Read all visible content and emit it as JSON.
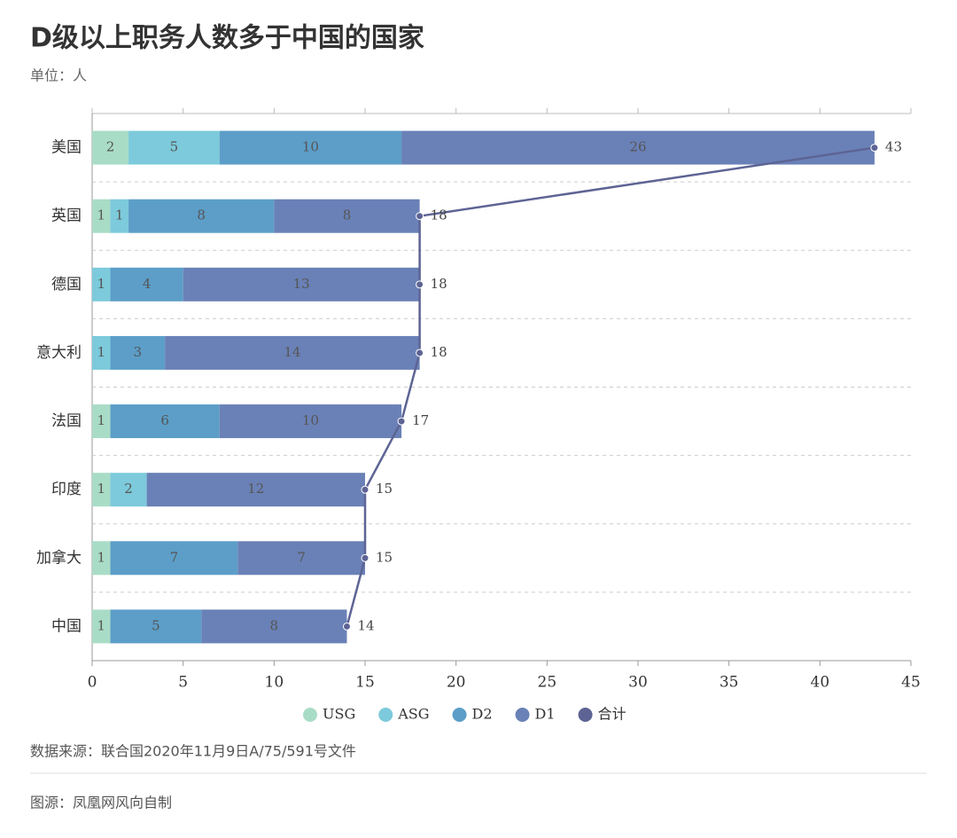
{
  "chart_data": {
    "type": "stacked-bar-line",
    "title": "D级以上职务人数多于中国的国家",
    "subtitle": "单位：人",
    "source": "数据来源：联合国2020年11月9日A/75/591号文件",
    "credit": "图源：凤凰网风向自制",
    "orientation": "horizontal",
    "categories": [
      "美国",
      "英国",
      "德国",
      "意大利",
      "法国",
      "印度",
      "加拿大",
      "中国"
    ],
    "series": [
      {
        "name": "USG",
        "color": "#a9dcc6",
        "values": [
          2,
          1,
          null,
          null,
          1,
          1,
          1,
          1
        ]
      },
      {
        "name": "ASG",
        "color": "#7ccadb",
        "values": [
          5,
          1,
          1,
          1,
          null,
          2,
          null,
          null
        ]
      },
      {
        "name": "D2",
        "color": "#5c9ec8",
        "values": [
          10,
          8,
          4,
          3,
          6,
          null,
          7,
          5
        ]
      },
      {
        "name": "D1",
        "color": "#6a81b7",
        "values": [
          26,
          8,
          13,
          14,
          10,
          12,
          7,
          8
        ]
      },
      {
        "name": "合计",
        "color": "#5d6494",
        "type": "line",
        "values": [
          43,
          18,
          18,
          18,
          17,
          15,
          15,
          14
        ]
      }
    ],
    "xlim": [
      0,
      45
    ],
    "xticks": [
      0,
      5,
      10,
      15,
      20,
      25,
      30,
      35,
      40,
      45
    ],
    "grid": true
  }
}
